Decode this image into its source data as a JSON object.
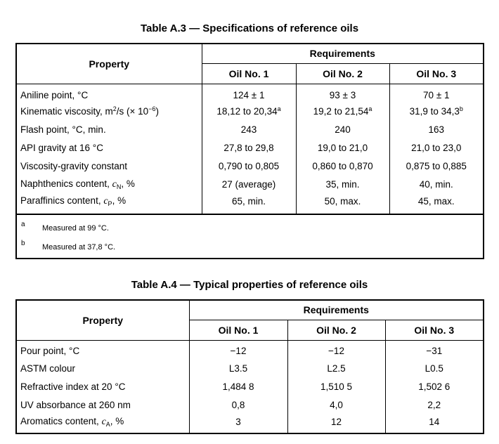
{
  "table_a3": {
    "caption": "Table A.3 — Specifications of reference oils",
    "property_header": "Property",
    "requirements_header": "Requirements",
    "oil_headers": [
      "Oil No. 1",
      "Oil No. 2",
      "Oil No. 3"
    ],
    "rows": [
      {
        "property": "Aniline point, °C",
        "values": [
          "124 ± 1",
          "93 ± 3",
          "70 ± 1"
        ]
      },
      {
        "property": "Kinematic viscosity, m²/s (× 10⁻⁶)",
        "values": [
          "18,12 to 20,34ᵃ",
          "19,2 to 21,54ᵃ",
          "31,9 to 34,3ᵇ"
        ]
      },
      {
        "property": "Flash point, °C, min.",
        "values": [
          "243",
          "240",
          "163"
        ]
      },
      {
        "property": "API gravity at 16 °C",
        "values": [
          "27,8 to 29,8",
          "19,0 to 21,0",
          "21,0 to 23,0"
        ]
      },
      {
        "property": "Viscosity-gravity constant",
        "values": [
          "0,790 to 0,805",
          "0,860 to 0,870",
          "0,875 to 0,885"
        ]
      },
      {
        "property": "Naphthenics content, cN, %",
        "values": [
          "27 (average)",
          "35, min.",
          "40, min."
        ]
      },
      {
        "property": "Paraffinics content, cP, %",
        "values": [
          "65, min.",
          "50, max.",
          "45, max."
        ]
      }
    ],
    "footnotes": [
      {
        "mark": "a",
        "text": "Measured at 99 °C."
      },
      {
        "mark": "b",
        "text": "Measured at 37,8 °C."
      }
    ]
  },
  "table_a4": {
    "caption": "Table A.4 — Typical properties of reference oils",
    "property_header": "Property",
    "requirements_header": "Requirements",
    "oil_headers": [
      "Oil No. 1",
      "Oil No. 2",
      "Oil No. 3"
    ],
    "rows": [
      {
        "property": "Pour point, °C",
        "values": [
          "−12",
          "−12",
          "−31"
        ]
      },
      {
        "property": "ASTM colour",
        "values": [
          "L3.5",
          "L2.5",
          "L0.5"
        ]
      },
      {
        "property": "Refractive index at 20 °C",
        "values": [
          "1,484 8",
          "1,510 5",
          "1,502 6"
        ]
      },
      {
        "property": "UV absorbance at 260 nm",
        "values": [
          "0,8",
          "4,0",
          "2,2"
        ]
      },
      {
        "property": "Aromatics content, cA, %",
        "values": [
          "3",
          "12",
          "14"
        ]
      }
    ]
  }
}
